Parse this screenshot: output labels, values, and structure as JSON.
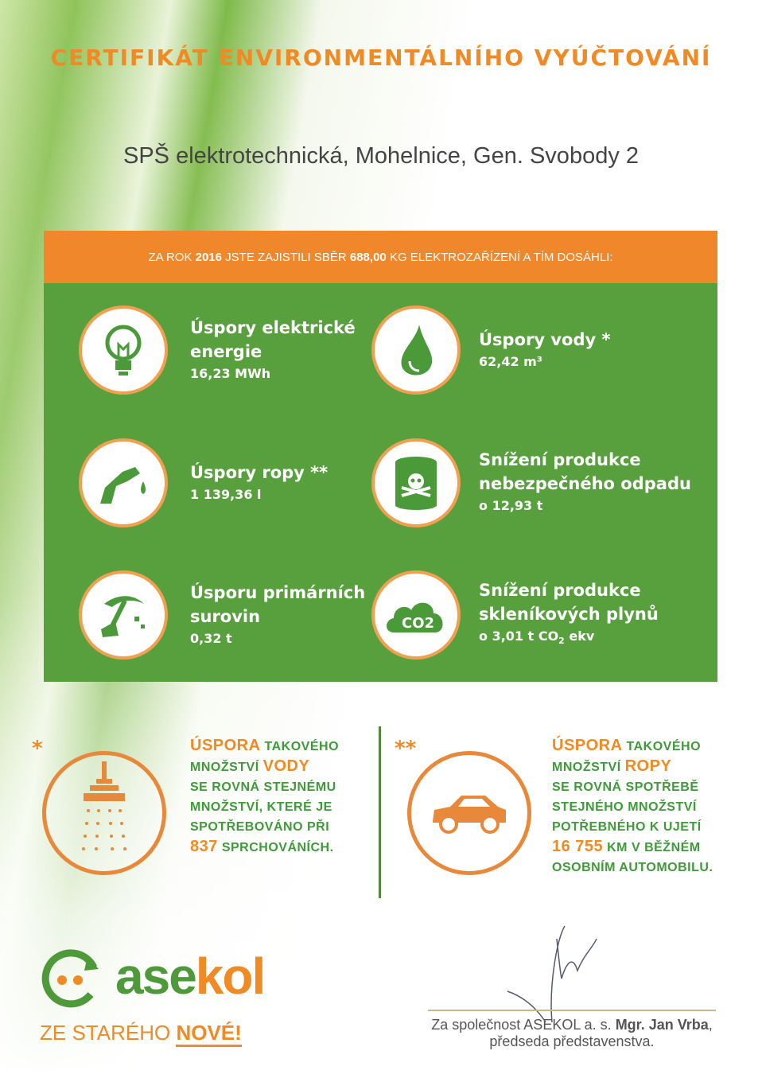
{
  "title": "CERTIFIKÁT ENVIRONMENTÁLNÍHO VYÚČTOVÁNÍ",
  "subject": "SPŠ elektrotechnická, Mohelnice, Gen. Svobody 2",
  "banner": {
    "p1": "ZA ROK ",
    "year": "2016",
    "p2": " JSTE ZAJISTILI SBĚR ",
    "amount": "688,00",
    "p3": " KG ELEKTROZAŘÍZENÍ A TÍM DOSÁHLI:"
  },
  "items": [
    {
      "icon": "lightbulb-icon",
      "h1": "Úspory elektrické",
      "h2": "energie",
      "value": "16,23 MWh"
    },
    {
      "icon": "water-drop-icon",
      "h1": "Úspory vody *",
      "h2": "",
      "value": "62,42 m³"
    },
    {
      "icon": "fuel-nozzle-icon",
      "h1": "Úspory ropy **",
      "h2": "",
      "value": "1 139,36 l"
    },
    {
      "icon": "toxic-barrel-icon",
      "h1": "Snížení produkce",
      "h2": "nebezpečného odpadu",
      "value": "o 12,93 t"
    },
    {
      "icon": "pickaxe-icon",
      "h1": "Úsporu primárních",
      "h2": "surovin",
      "value": "0,32 t"
    },
    {
      "icon": "co2-cloud-icon",
      "h1": "Snížení produkce",
      "h2": "skleníkových plynů",
      "value_pre": "o 3,01 t CO",
      "value_sub": "2",
      "value_post": " ekv"
    }
  ],
  "co2_label": "CO2",
  "notes": {
    "water": {
      "star": "*",
      "a": "ÚSPORA",
      "b": " TAKOVÉHO",
      "c": "MNOŽSTVÍ ",
      "d": "VODY",
      "l3": "SE ROVNÁ STEJNÉMU",
      "l4": "MNOŽSTVÍ, KTERÉ JE",
      "l5": "SPOTŘEBOVÁNO PŘI",
      "num": "837",
      "l6": " SPRCHOVÁNÍCH."
    },
    "oil": {
      "star": "**",
      "a": "ÚSPORA",
      "b": " TAKOVÉHO",
      "c": "MNOŽSTVÍ ",
      "d": "ROPY",
      "l3": "SE ROVNÁ SPOTŘEBĚ",
      "l4": "STEJNÉHO MNOŽSTVÍ",
      "l5": "POTŘEBNÉHO K UJETÍ",
      "num": "16 755",
      "l6": " KM V BĚŽNÉM",
      "l7": "OSOBNÍM AUTOMOBILU."
    }
  },
  "logo": {
    "name_a": "ase",
    "name_b": "kol",
    "slogan_a": "ZE STARÉHO ",
    "slogan_b": "NOVÉ!"
  },
  "signature": {
    "p1": "Za společnost ASEKOL a. s. ",
    "name": "Mgr. Jan Vrba",
    "p2": ",",
    "role": "předseda představenstva."
  },
  "colors": {
    "orange": "#f0872a",
    "green": "#58a03e"
  }
}
